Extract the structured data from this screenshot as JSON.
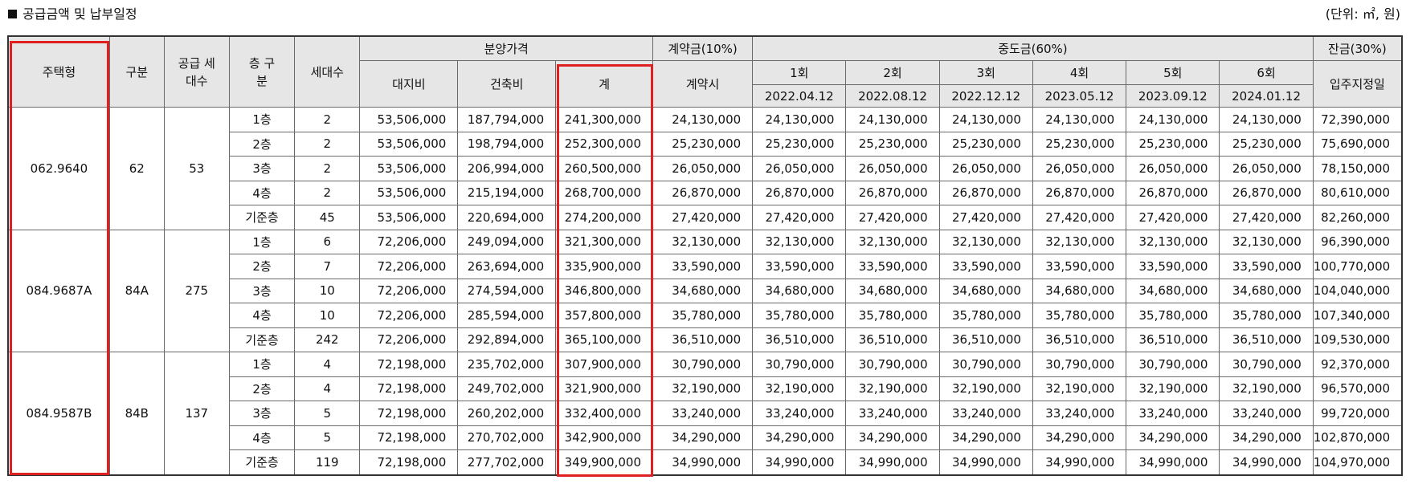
{
  "title": "공급금액 및 납부일정",
  "unit": "(단위: ㎡, 원)",
  "header": {
    "housing_type": "주택형",
    "category": "구분",
    "supply_units": "공급 세대수",
    "floor_category": "층 구분",
    "households": "세대수",
    "sale_price": "분양가격",
    "land": "대지비",
    "building": "건축비",
    "total": "계",
    "contract": "계약금(10%)",
    "contract_time": "계약시",
    "middle": "중도금(60%)",
    "balance": "잔금(30%)",
    "move_in": "입주지정일",
    "installments": [
      {
        "label": "1회",
        "date": "2022.04.12"
      },
      {
        "label": "2회",
        "date": "2022.08.12"
      },
      {
        "label": "3회",
        "date": "2022.12.12"
      },
      {
        "label": "4회",
        "date": "2023.05.12"
      },
      {
        "label": "5회",
        "date": "2023.09.12"
      },
      {
        "label": "6회",
        "date": "2024.01.12"
      }
    ]
  },
  "groups": [
    {
      "housing_type": "062.9640",
      "category": "62",
      "supply_units": "53",
      "rows": [
        {
          "floor": "1층",
          "households": "2",
          "land": "53,506,000",
          "building": "187,794,000",
          "total": "241,300,000",
          "contract": "24,130,000",
          "middle": "24,130,000",
          "balance": "72,390,000"
        },
        {
          "floor": "2층",
          "households": "2",
          "land": "53,506,000",
          "building": "198,794,000",
          "total": "252,300,000",
          "contract": "25,230,000",
          "middle": "25,230,000",
          "balance": "75,690,000"
        },
        {
          "floor": "3층",
          "households": "2",
          "land": "53,506,000",
          "building": "206,994,000",
          "total": "260,500,000",
          "contract": "26,050,000",
          "middle": "26,050,000",
          "balance": "78,150,000"
        },
        {
          "floor": "4층",
          "households": "2",
          "land": "53,506,000",
          "building": "215,194,000",
          "total": "268,700,000",
          "contract": "26,870,000",
          "middle": "26,870,000",
          "balance": "80,610,000"
        },
        {
          "floor": "기준층",
          "households": "45",
          "land": "53,506,000",
          "building": "220,694,000",
          "total": "274,200,000",
          "contract": "27,420,000",
          "middle": "27,420,000",
          "balance": "82,260,000"
        }
      ]
    },
    {
      "housing_type": "084.9687A",
      "category": "84A",
      "supply_units": "275",
      "rows": [
        {
          "floor": "1층",
          "households": "6",
          "land": "72,206,000",
          "building": "249,094,000",
          "total": "321,300,000",
          "contract": "32,130,000",
          "middle": "32,130,000",
          "balance": "96,390,000"
        },
        {
          "floor": "2층",
          "households": "7",
          "land": "72,206,000",
          "building": "263,694,000",
          "total": "335,900,000",
          "contract": "33,590,000",
          "middle": "33,590,000",
          "balance": "100,770,000"
        },
        {
          "floor": "3층",
          "households": "10",
          "land": "72,206,000",
          "building": "274,594,000",
          "total": "346,800,000",
          "contract": "34,680,000",
          "middle": "34,680,000",
          "balance": "104,040,000"
        },
        {
          "floor": "4층",
          "households": "10",
          "land": "72,206,000",
          "building": "285,594,000",
          "total": "357,800,000",
          "contract": "35,780,000",
          "middle": "35,780,000",
          "balance": "107,340,000"
        },
        {
          "floor": "기준층",
          "households": "242",
          "land": "72,206,000",
          "building": "292,894,000",
          "total": "365,100,000",
          "contract": "36,510,000",
          "middle": "36,510,000",
          "balance": "109,530,000"
        }
      ]
    },
    {
      "housing_type": "084.9587B",
      "category": "84B",
      "supply_units": "137",
      "rows": [
        {
          "floor": "1층",
          "households": "4",
          "land": "72,198,000",
          "building": "235,702,000",
          "total": "307,900,000",
          "contract": "30,790,000",
          "middle": "30,790,000",
          "balance": "92,370,000"
        },
        {
          "floor": "2층",
          "households": "4",
          "land": "72,198,000",
          "building": "249,702,000",
          "total": "321,900,000",
          "contract": "32,190,000",
          "middle": "32,190,000",
          "balance": "96,570,000"
        },
        {
          "floor": "3층",
          "households": "5",
          "land": "72,198,000",
          "building": "260,202,000",
          "total": "332,400,000",
          "contract": "33,240,000",
          "middle": "33,240,000",
          "balance": "99,720,000"
        },
        {
          "floor": "4층",
          "households": "5",
          "land": "72,198,000",
          "building": "270,702,000",
          "total": "342,900,000",
          "contract": "34,290,000",
          "middle": "34,290,000",
          "balance": "102,870,000"
        },
        {
          "floor": "기준층",
          "households": "119",
          "land": "72,198,000",
          "building": "277,702,000",
          "total": "349,900,000",
          "contract": "34,990,000",
          "middle": "34,990,000",
          "balance": "104,970,000"
        }
      ]
    }
  ],
  "highlight_color": "#e02020"
}
